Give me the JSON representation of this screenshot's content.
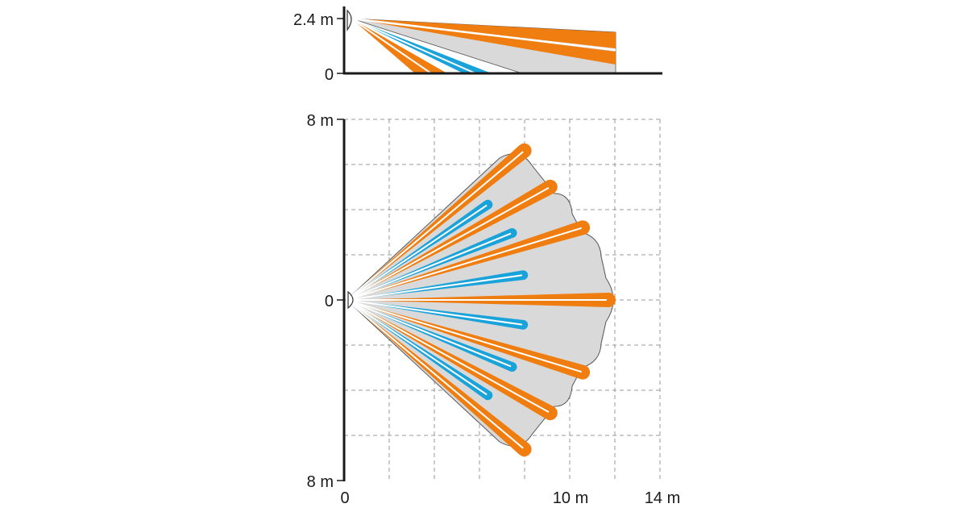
{
  "side_view": {
    "y_tick_top": "2.4 m",
    "y_tick_bottom": "0"
  },
  "top_view": {
    "y_tick_top": "8 m",
    "y_tick_middle": "0",
    "y_tick_bottom": "8 m",
    "x_tick_origin": "0",
    "x_tick_mid": "10 m",
    "x_tick_end": "14 m"
  },
  "colors": {
    "long_range_beam": "#ef7d0f",
    "short_range_beam": "#1aa3da",
    "coverage_area": "#d9d9d9",
    "beam_divider": "#ffffff",
    "axis": "#1a1a1a",
    "grid": "#9a9a9a"
  },
  "icons": {
    "sensor": "motion-sensor-icon"
  }
}
